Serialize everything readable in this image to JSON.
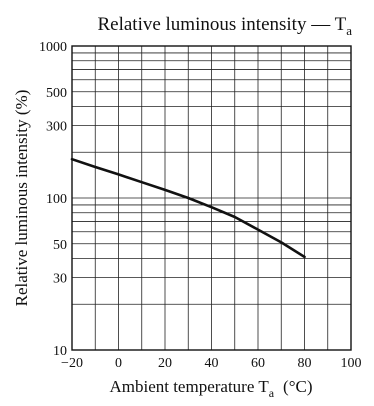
{
  "chart_data": {
    "type": "line",
    "title_main": "Relative luminous intensity — T",
    "title_sub": "a",
    "xlabel_main": "Ambient temperature  T",
    "xlabel_sub": "a",
    "xlabel_unit": "(°C)",
    "ylabel": "Relative luminous intensity  (%)",
    "xlim": [
      -20,
      100
    ],
    "ylim": [
      10,
      1000
    ],
    "yscale": "log",
    "grid": true,
    "x_ticks": [
      -20,
      0,
      20,
      40,
      60,
      80,
      100
    ],
    "x_tick_labels": [
      "−20",
      "0",
      "20",
      "40",
      "60",
      "80",
      "100"
    ],
    "x_grid": [
      -20,
      -10,
      0,
      10,
      20,
      30,
      40,
      50,
      60,
      70,
      80,
      90,
      100
    ],
    "y_ticks": [
      10,
      30,
      50,
      100,
      300,
      500,
      1000
    ],
    "y_tick_labels": [
      "10",
      "30",
      "50",
      "100",
      "300",
      "500",
      "1000"
    ],
    "y_grid": [
      10,
      20,
      30,
      40,
      50,
      60,
      70,
      80,
      90,
      100,
      200,
      300,
      400,
      500,
      600,
      700,
      800,
      900,
      1000
    ],
    "series": [
      {
        "x": [
          -20,
          -10,
          0,
          10,
          20,
          30,
          40,
          50,
          60,
          70,
          80
        ],
        "y": [
          180,
          160,
          143,
          127,
          113,
          100,
          87,
          75,
          62,
          51,
          41
        ],
        "color": "#111111"
      }
    ]
  }
}
